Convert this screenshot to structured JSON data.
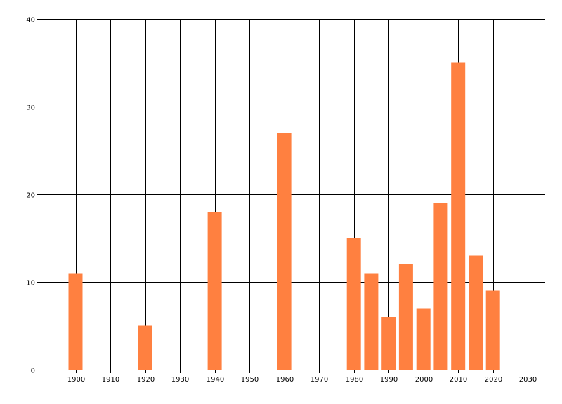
{
  "chart_data": {
    "type": "bar",
    "title": "",
    "xlabel": "",
    "ylabel": "",
    "x": [
      1900,
      1920,
      1940,
      1960,
      1980,
      1985,
      1990,
      1995,
      2000,
      2005,
      2010,
      2015,
      2020
    ],
    "values": [
      11,
      5,
      18,
      27,
      15,
      11,
      6,
      12,
      7,
      19,
      35,
      13,
      9
    ],
    "xlim": [
      1890,
      2035
    ],
    "ylim": [
      0,
      40
    ],
    "x_ticks": [
      1900,
      1910,
      1920,
      1930,
      1940,
      1950,
      1960,
      1970,
      1980,
      1990,
      2000,
      2010,
      2020,
      2030
    ],
    "y_ticks": [
      0,
      10,
      20,
      30,
      40
    ],
    "grid": true,
    "legend": "none",
    "bar_color": "#FF8040",
    "grid_color": "#000000"
  }
}
